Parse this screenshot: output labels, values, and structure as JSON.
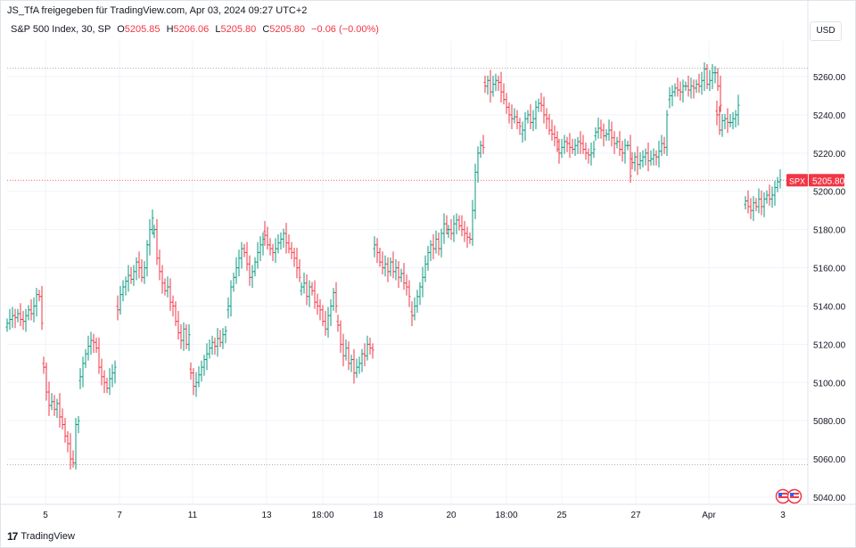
{
  "header": {
    "attribution": "JS_TfA freigegeben für TradingView.com, Apr 03, 2024 09:27 UTC+2"
  },
  "legend": {
    "symbol": "S&P 500 Index, 30, SP",
    "open_label": "O",
    "open": "5205.85",
    "high_label": "H",
    "high": "5206.06",
    "low_label": "L",
    "low": "5205.80",
    "close_label": "C",
    "close": "5205.80",
    "change": "−0.06 (−0.00%)"
  },
  "currency_button": "USD",
  "footer": {
    "brand": "TradingView",
    "logo_text": "17"
  },
  "colors": {
    "up": "#089981",
    "down": "#f23645",
    "grid": "#f0f3fa",
    "text": "#131722",
    "price_line": "#f23645"
  },
  "chart_data": {
    "type": "ohlc",
    "title": "S&P 500 Index, 30, SP",
    "y_ticks": [
      5040,
      5060,
      5080,
      5100,
      5120,
      5140,
      5160,
      5180,
      5200,
      5220,
      5240,
      5260
    ],
    "y_tick_labels": [
      "5040.00",
      "5060.00",
      "5080.00",
      "5100.00",
      "5120.00",
      "5140.00",
      "5160.00",
      "5180.00",
      "5200.00",
      "5220.00",
      "5240.00",
      "5260.00"
    ],
    "ylim": [
      5033,
      5275
    ],
    "x_ticks": [
      "5",
      "7",
      "11",
      "13",
      "18:00",
      "18",
      "20",
      "18:00",
      "25",
      "27",
      "Apr",
      "3"
    ],
    "current_price": {
      "symbol": "SPX",
      "value": "5205.80",
      "num": 5205.8
    },
    "dotted_levels": [
      5264.5,
      5057.0
    ],
    "grid": true,
    "series": [
      {
        "segment": "Mar 4",
        "values": [
          5131,
          5133,
          5135,
          5134,
          5136,
          5133,
          5132,
          5135,
          5138,
          5136,
          5140,
          5146,
          5145,
          5131
        ]
      },
      {
        "segment": "Mar 5",
        "values": [
          5108,
          5095,
          5088,
          5090,
          5086,
          5089,
          5082,
          5078,
          5072,
          5068,
          5060,
          5058,
          5078,
          5080
        ]
      },
      {
        "segment": "Mar 6",
        "values": [
          5103,
          5110,
          5115,
          5119,
          5122,
          5121,
          5118,
          5108,
          5103,
          5100,
          5097,
          5102,
          5105,
          5108
        ]
      },
      {
        "segment": "Mar 7",
        "values": [
          5138,
          5146,
          5150,
          5153,
          5156,
          5154,
          5158,
          5163,
          5160,
          5155,
          5160,
          5172,
          5180,
          5186
        ]
      },
      {
        "segment": "Mar 8",
        "values": [
          5180,
          5165,
          5158,
          5152,
          5148,
          5150,
          5142,
          5140,
          5132,
          5126,
          5122,
          5128,
          5120,
          5125
        ]
      },
      {
        "segment": "Mar 11",
        "values": [
          5105,
          5098,
          5100,
          5104,
          5108,
          5112,
          5115,
          5118,
          5121,
          5119,
          5123,
          5121,
          5125,
          5127
        ]
      },
      {
        "segment": "Mar 12",
        "values": [
          5140,
          5150,
          5155,
          5160,
          5165,
          5170,
          5168,
          5162,
          5155,
          5158,
          5163,
          5168,
          5172,
          5175
        ]
      },
      {
        "segment": "Mar 13",
        "values": [
          5177,
          5172,
          5170,
          5168,
          5170,
          5173,
          5175,
          5178,
          5173,
          5170,
          5168,
          5165,
          5160,
          5155
        ]
      },
      {
        "segment": "Mar 14",
        "values": [
          5150,
          5152,
          5145,
          5150,
          5148,
          5142,
          5140,
          5138,
          5132,
          5128,
          5135,
          5140,
          5147,
          5140
        ]
      },
      {
        "segment": "Mar 15",
        "values": [
          5130,
          5120,
          5114,
          5118,
          5110,
          5112,
          5105,
          5108,
          5110,
          5115,
          5114,
          5120,
          5118,
          5117
        ]
      },
      {
        "segment": "Mar 18",
        "values": [
          5172,
          5168,
          5163,
          5160,
          5162,
          5158,
          5163,
          5158,
          5160,
          5155,
          5157,
          5152,
          5150,
          5145
        ]
      },
      {
        "segment": "Mar 19",
        "values": [
          5135,
          5140,
          5145,
          5150,
          5155,
          5162,
          5168,
          5172,
          5170,
          5175,
          5170,
          5178,
          5183,
          5180
        ]
      },
      {
        "segment": "Mar 20",
        "values": [
          5180,
          5178,
          5183,
          5185,
          5182,
          5180,
          5178,
          5176,
          5175,
          5190,
          5210,
          5220,
          5224,
          5223
        ]
      },
      {
        "segment": "Mar 21",
        "values": [
          5255,
          5258,
          5252,
          5256,
          5258,
          5257,
          5252,
          5248,
          5244,
          5240,
          5238,
          5239,
          5236,
          5234
        ]
      },
      {
        "segment": "Mar 22",
        "values": [
          5232,
          5238,
          5240,
          5236,
          5238,
          5244,
          5246,
          5245,
          5240,
          5238,
          5232,
          5230,
          5228,
          5226
        ]
      },
      {
        "segment": "Mar 25",
        "values": [
          5220,
          5223,
          5226,
          5225,
          5223,
          5222,
          5224,
          5226,
          5225,
          5222,
          5220,
          5219,
          5220,
          5222
        ]
      },
      {
        "segment": "Mar 26",
        "values": [
          5231,
          5233,
          5232,
          5229,
          5230,
          5232,
          5228,
          5225,
          5226,
          5222,
          5220,
          5224,
          5224,
          5208
        ]
      },
      {
        "segment": "Mar 27",
        "values": [
          5215,
          5218,
          5214,
          5216,
          5218,
          5220,
          5216,
          5217,
          5219,
          5218,
          5221,
          5225,
          5223,
          5240
        ]
      },
      {
        "segment": "Mar 28",
        "values": [
          5250,
          5252,
          5254,
          5253,
          5252,
          5255,
          5255,
          5253,
          5255,
          5254,
          5256,
          5255,
          5258,
          5264,
          5256,
          5258,
          5262,
          5262,
          5255,
          5245
        ]
      },
      {
        "segment": "Apr 1",
        "values": [
          5240,
          5232,
          5237,
          5238,
          5236,
          5236,
          5238,
          5240,
          5245
        ]
      },
      {
        "segment": "Apr 2",
        "values": [
          5195,
          5192,
          5190,
          5194,
          5192,
          5196,
          5192,
          5196,
          5198,
          5196,
          5198,
          5202,
          5205,
          5206
        ]
      }
    ]
  }
}
